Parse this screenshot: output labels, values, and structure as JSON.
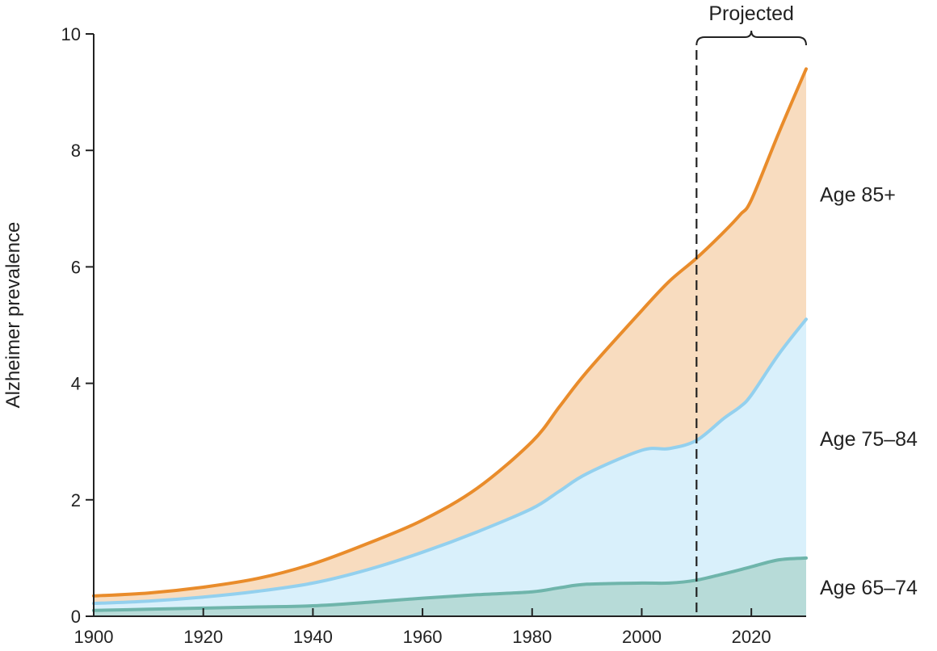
{
  "chart_data": {
    "type": "area",
    "title": "",
    "xlabel": "",
    "ylabel": "Alzheimer prevalence",
    "xlim": [
      1900,
      2030
    ],
    "ylim": [
      0,
      10
    ],
    "x_ticks": [
      "1900",
      "1920",
      "1940",
      "1960",
      "1980",
      "2000",
      "2020"
    ],
    "y_ticks": [
      "0",
      "2",
      "4",
      "6",
      "8",
      "10"
    ],
    "x": [
      1900,
      1910,
      1920,
      1930,
      1940,
      1950,
      1960,
      1970,
      1980,
      1985,
      1990,
      2000,
      2005,
      2010,
      2015,
      2018,
      2020,
      2025,
      2030
    ],
    "stacked": true,
    "series": [
      {
        "name": "Age 65–74",
        "color": "#6fb5ab",
        "fill": "#b7dbd8",
        "cumulative_values": [
          0.1,
          0.12,
          0.14,
          0.16,
          0.18,
          0.24,
          0.31,
          0.37,
          0.42,
          0.49,
          0.55,
          0.57,
          0.57,
          0.62,
          0.73,
          0.8,
          0.85,
          0.97,
          1.0
        ]
      },
      {
        "name": "Age 75–84",
        "color": "#93d0ee",
        "fill": "#d9f0fb",
        "cumulative_values": [
          0.22,
          0.26,
          0.33,
          0.43,
          0.57,
          0.8,
          1.1,
          1.45,
          1.85,
          2.15,
          2.45,
          2.85,
          2.88,
          3.02,
          3.4,
          3.6,
          3.8,
          4.5,
          5.1
        ]
      },
      {
        "name": "Age 85+",
        "color": "#e98c2b",
        "fill": "#f8dcbf",
        "cumulative_values": [
          0.35,
          0.4,
          0.5,
          0.65,
          0.9,
          1.25,
          1.65,
          2.2,
          3.0,
          3.6,
          4.2,
          5.25,
          5.75,
          6.15,
          6.6,
          6.9,
          7.15,
          8.3,
          9.4
        ]
      }
    ],
    "projected_start": 2010,
    "projected_label": "Projected",
    "legend": "labels at right end of each band"
  }
}
